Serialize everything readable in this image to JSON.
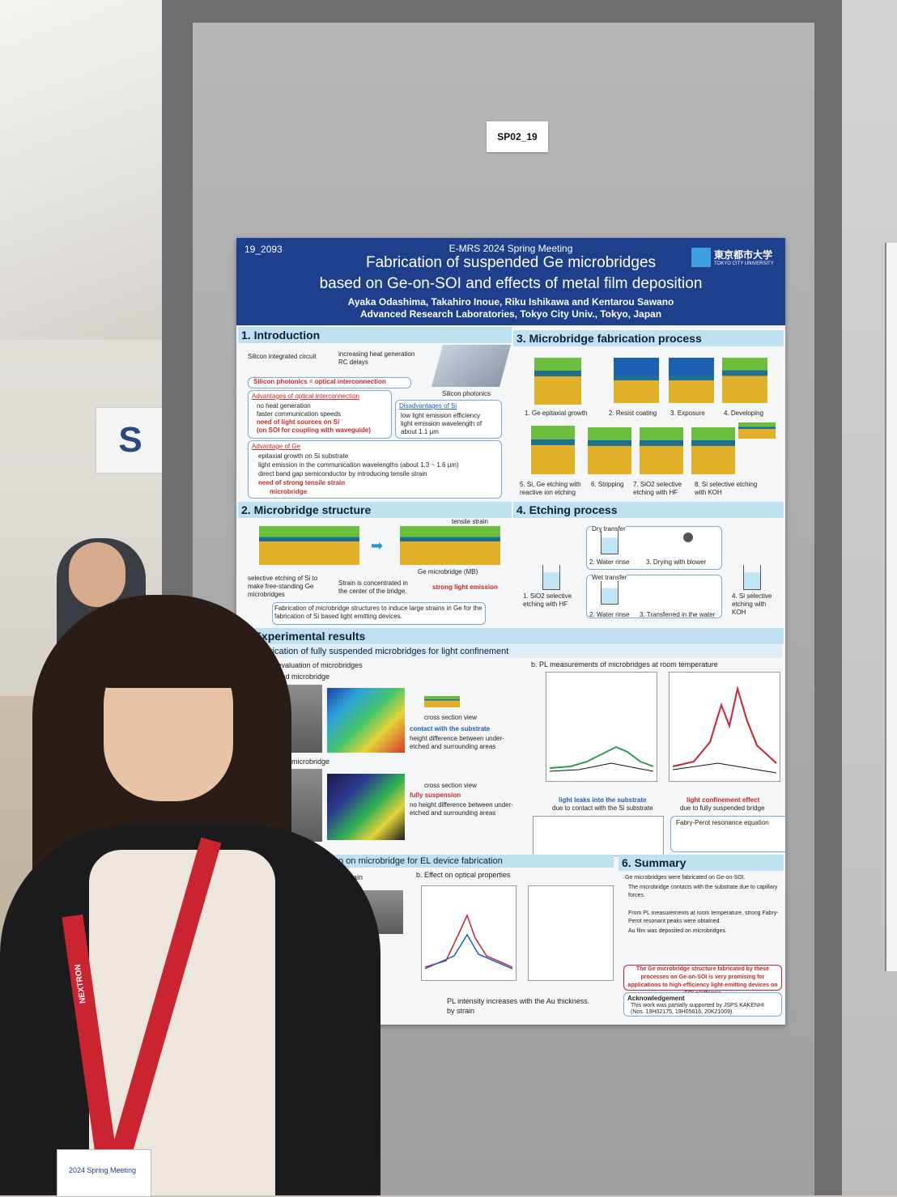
{
  "board_label": "SP02_19",
  "hall_sign": "S",
  "poster": {
    "id": "19_2093",
    "meeting": "E-MRS 2024 Spring Meeting",
    "title_line1": "Fabrication of suspended Ge microbridges",
    "title_line2": "based on Ge-on-SOI and effects of metal film deposition",
    "authors": "Ayaka Odashima, Takahiro Inoue, Riku Ishikawa and Kentarou Sawano",
    "affiliation": "Advanced Research Laboratories, Tokyo City Univ., Tokyo, Japan",
    "logo_jp": "東京都市大学",
    "logo_en": "TOKYO CITY UNIVERSITY",
    "sec1": {
      "title": "1. Introduction",
      "circuit": "Silicon integrated circuit",
      "issue1": "increasing heat generation",
      "issue2": "RC delays",
      "photonics_label": "Silicon photonics",
      "interconnect": "Silicon photonics = optical interconnection",
      "adv_opt_title": "Advantages of optical interconnection",
      "adv_opt1": "no heat generation",
      "adv_opt2": "faster communication speeds",
      "adv_opt3": "need of light sources on Si",
      "adv_opt4": "(on SOI for coupling with waveguide)",
      "disadv_title": "Disadvantages of Si",
      "disadv1": "low light emission efficiency",
      "disadv2": "light emission wavelength of about 1.1 μm",
      "adv_ge_title": "Advantage of Ge",
      "adv_ge1": "epitaxial growth on Si substrate",
      "adv_ge2": "light emission in the communication wavelengths (about 1.3 ~ 1.6 μm)",
      "adv_ge3": "direct band gap semiconductor by introducing tensile strain",
      "adv_ge4": "need of strong tensile strain",
      "adv_ge5": "microbridge"
    },
    "sec2": {
      "title": "2. Microbridge structure",
      "tensile": "tensile strain",
      "mb_label": "Ge microbridge (MB)",
      "etch_text": "selective etching of Si to make free-standing Ge microbridges",
      "strain_text": "Strain is concentrated in the center of the bridge.",
      "strong": "strong light emission",
      "note": "Fabrication of microbridge structures to induce large strains in Ge for the fabrication of Si based light emitting devices."
    },
    "sec3": {
      "title": "3. Microbridge fabrication process",
      "steps": [
        "1. Ge epitaxial growth",
        "2. Resist coating",
        "3. Exposure",
        "4. Developing",
        "5. Si, Ge etching with reactive ion etching",
        "6. Stripping",
        "7. SiO2 selective etching with HF",
        "8. Si selective etching with KOH"
      ]
    },
    "sec4": {
      "title": "4. Etching process",
      "dry": "Dry transfer",
      "wet": "Wet transfer",
      "s1": "1. SiO2 selective etching with HF",
      "s2a": "2. Water rinse",
      "s3a": "3. Drying with blower",
      "s2b": "2. Water rinse",
      "s3b": "3. Transferred in the water",
      "s4": "4. Si selective etching with KOH"
    },
    "sec5": {
      "title": "5. Experimental results",
      "sub_a": "Fabrication of fully suspended microbridges for light confinement",
      "shape": "Shape evaluation of microbridges",
      "dry_mb": "transferred microbridge",
      "wet_mb": "transferred microbridge",
      "cross1": "cross section view",
      "contact": "contact with the substrate",
      "height1": "height difference between under-etched and surrounding areas",
      "cross2": "cross section view",
      "fully": "fully suspension",
      "height2": "no height difference between under-etched and surrounding areas",
      "pl_title": "b. PL measurements of microbridges at room temperature",
      "leak": "light leaks into the substrate",
      "leak2": "due to contact with the Si substrate",
      "confine": "light confinement effect",
      "confine2": "due to fully suspended bridge",
      "fp": "Fabry-Perot resonance equation",
      "el_title": "on on microbridge for EL device fabrication",
      "strain": "strain",
      "optical": "b. Effect on optical properties",
      "au_note": "PL intensity increases with the Au thickness.",
      "by_strain": "by strain"
    },
    "sec6": {
      "title": "6. Summary",
      "line1": "Ge microbridges were fabricated on Ge-on-SOI.",
      "line2": "The microbridge contacts with the substrate due to capillary forces.",
      "line3": "From PL measurements at room temperature, strong Fabry-Perot resonant peaks were obtained.",
      "line4": "Au film was deposited on microbridges.",
      "highlight": "The Ge microbridge structure fabricated by these processes on Ge-on-SOI is very promising for applications to high-efficiency light-emitting devices on SOI platforms",
      "ack_title": "Acknowledgement",
      "ack": "This work was partially supported by JSPS KAKENHI (Nos. 19H02175, 19H05616, 20K21009)."
    }
  },
  "lanyard_text": "NEXTRON",
  "badge_text": "2024 Spring Meeting"
}
